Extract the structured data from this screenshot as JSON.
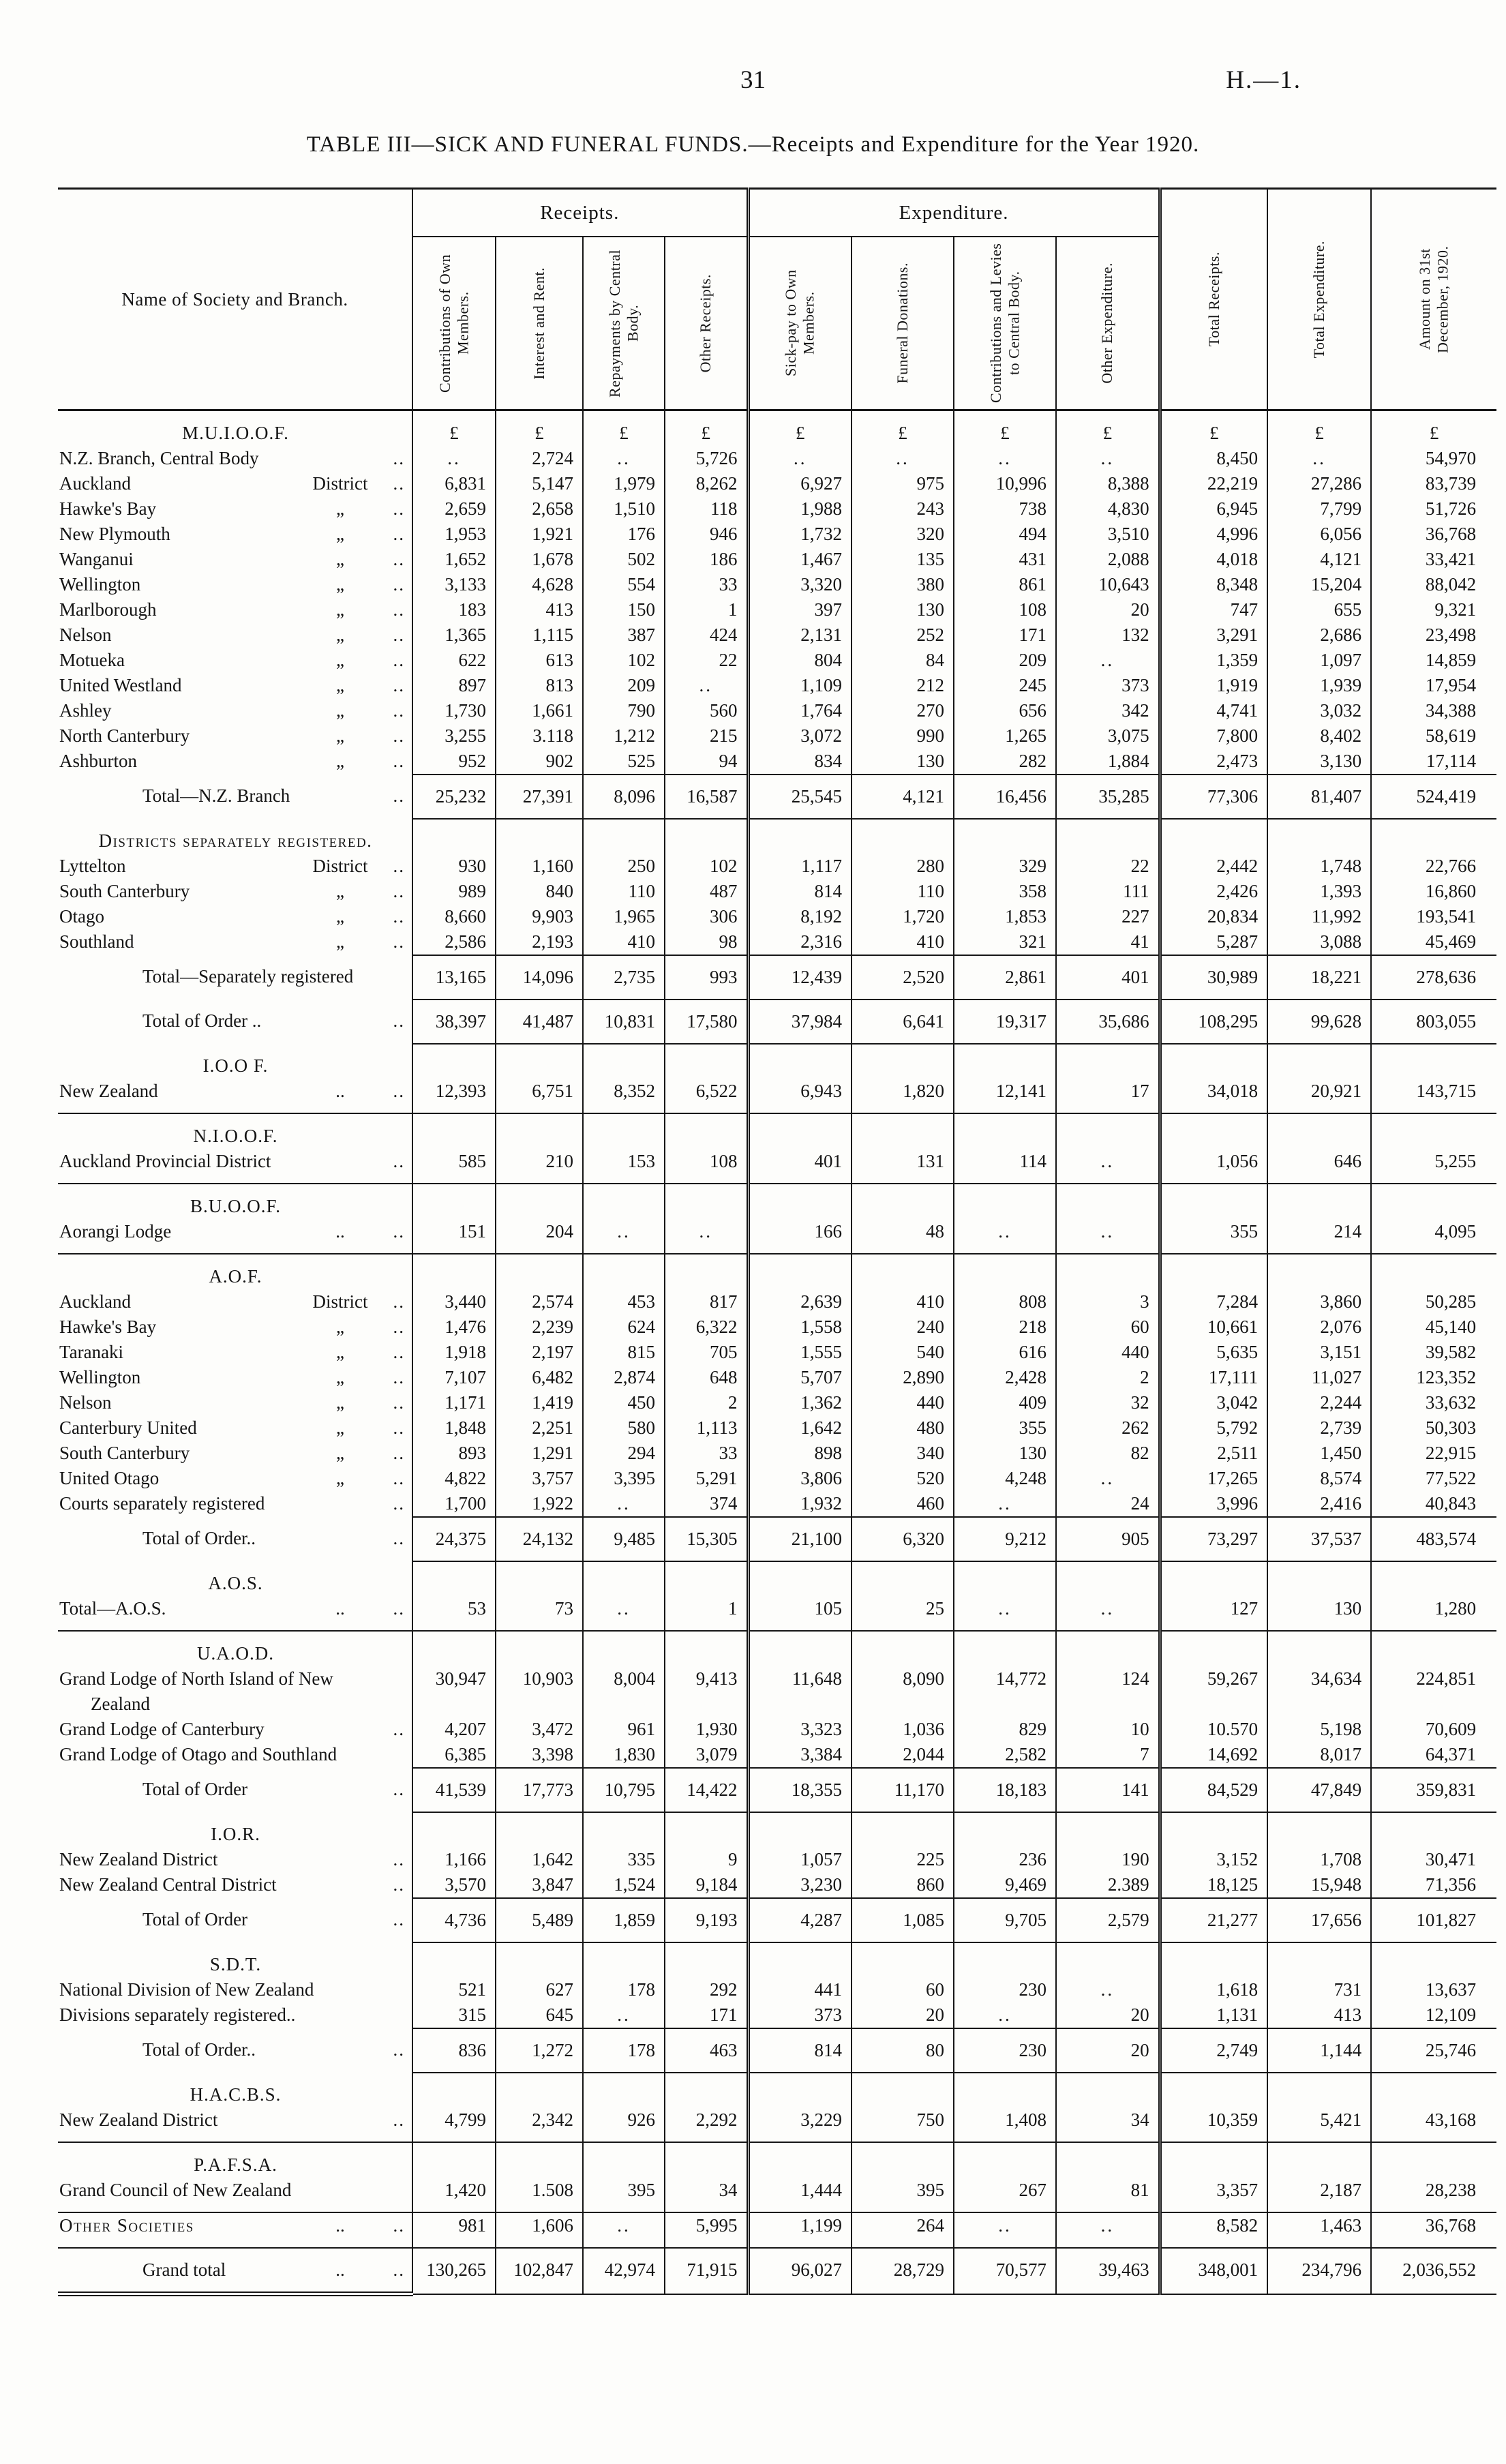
{
  "page": {
    "number": "31",
    "doc_ref": "H.—1."
  },
  "title": "TABLE III—SICK AND FUNERAL FUNDS.—Receipts and Expenditure for the Year 1920.",
  "table": {
    "name_header": "Name of Society and Branch.",
    "group_headers": {
      "receipts": "Receipts.",
      "expenditure": "Expenditure."
    },
    "currency_symbol": "£",
    "columns": [
      "Contributions of Own Members.",
      "Interest and Rent.",
      "Repayments by Central Body.",
      "Other Receipts.",
      "Sick-pay to Own Members.",
      "Funeral Donations.",
      "Contributions and Levies to Central Body.",
      "Other Expenditure.",
      "Total Receipts.",
      "Total Expenditure.",
      "Amount on 31st December, 1920."
    ],
    "rows": [
      {
        "type": "section",
        "label": "M.U.I.O.O.F.",
        "pounds": true
      },
      {
        "type": "data",
        "label": "N.Z. Branch, Central Body",
        "sub": "",
        "dots": "..",
        "values": [
          "..",
          "2,724",
          "..",
          "5,726",
          "..",
          "..",
          "..",
          "..",
          "8,450",
          "..",
          "54,970"
        ]
      },
      {
        "type": "data",
        "label": "Auckland",
        "sub": "District",
        "dots": "..",
        "values": [
          "6,831",
          "5,147",
          "1,979",
          "8,262",
          "6,927",
          "975",
          "10,996",
          "8,388",
          "22,219",
          "27,286",
          "83,739"
        ]
      },
      {
        "type": "data",
        "label": "Hawke's Bay",
        "sub": "„",
        "dots": "..",
        "values": [
          "2,659",
          "2,658",
          "1,510",
          "118",
          "1,988",
          "243",
          "738",
          "4,830",
          "6,945",
          "7,799",
          "51,726"
        ]
      },
      {
        "type": "data",
        "label": "New Plymouth",
        "sub": "„",
        "dots": "..",
        "values": [
          "1,953",
          "1,921",
          "176",
          "946",
          "1,732",
          "320",
          "494",
          "3,510",
          "4,996",
          "6,056",
          "36,768"
        ]
      },
      {
        "type": "data",
        "label": "Wanganui",
        "sub": "„",
        "dots": "..",
        "values": [
          "1,652",
          "1,678",
          "502",
          "186",
          "1,467",
          "135",
          "431",
          "2,088",
          "4,018",
          "4,121",
          "33,421"
        ]
      },
      {
        "type": "data",
        "label": "Wellington",
        "sub": "„",
        "dots": "..",
        "values": [
          "3,133",
          "4,628",
          "554",
          "33",
          "3,320",
          "380",
          "861",
          "10,643",
          "8,348",
          "15,204",
          "88,042"
        ]
      },
      {
        "type": "data",
        "label": "Marlborough",
        "sub": "„",
        "dots": "..",
        "values": [
          "183",
          "413",
          "150",
          "1",
          "397",
          "130",
          "108",
          "20",
          "747",
          "655",
          "9,321"
        ]
      },
      {
        "type": "data",
        "label": "Nelson",
        "sub": "„",
        "dots": "..",
        "values": [
          "1,365",
          "1,115",
          "387",
          "424",
          "2,131",
          "252",
          "171",
          "132",
          "3,291",
          "2,686",
          "23,498"
        ]
      },
      {
        "type": "data",
        "label": "Motueka",
        "sub": "„",
        "dots": "..",
        "values": [
          "622",
          "613",
          "102",
          "22",
          "804",
          "84",
          "209",
          "..",
          "1,359",
          "1,097",
          "14,859"
        ]
      },
      {
        "type": "data",
        "label": "United Westland",
        "sub": "„",
        "dots": "..",
        "values": [
          "897",
          "813",
          "209",
          "..",
          "1,109",
          "212",
          "245",
          "373",
          "1,919",
          "1,939",
          "17,954"
        ]
      },
      {
        "type": "data",
        "label": "Ashley",
        "sub": "„",
        "dots": "..",
        "values": [
          "1,730",
          "1,661",
          "790",
          "560",
          "1,764",
          "270",
          "656",
          "342",
          "4,741",
          "3,032",
          "34,388"
        ]
      },
      {
        "type": "data",
        "label": "North Canterbury",
        "sub": "„",
        "dots": "..",
        "values": [
          "3,255",
          "3.118",
          "1,212",
          "215",
          "3,072",
          "990",
          "1,265",
          "3,075",
          "7,800",
          "8,402",
          "58,619"
        ]
      },
      {
        "type": "data",
        "label": "Ashburton",
        "sub": "„",
        "dots": "..",
        "values": [
          "952",
          "902",
          "525",
          "94",
          "834",
          "130",
          "282",
          "1,884",
          "2,473",
          "3,130",
          "17,114"
        ]
      },
      {
        "type": "total",
        "label": "Total—N.Z. Branch",
        "sub": "",
        "dots": "..",
        "values": [
          "25,232",
          "27,391",
          "8,096",
          "16,587",
          "25,545",
          "4,121",
          "16,456",
          "35,285",
          "77,306",
          "81,407",
          "524,419"
        ]
      },
      {
        "type": "section",
        "label": "Districts separately registered.",
        "sc": true
      },
      {
        "type": "data",
        "label": "Lyttelton",
        "sub": "District",
        "dots": "..",
        "values": [
          "930",
          "1,160",
          "250",
          "102",
          "1,117",
          "280",
          "329",
          "22",
          "2,442",
          "1,748",
          "22,766"
        ]
      },
      {
        "type": "data",
        "label": "South Canterbury",
        "sub": "„",
        "dots": "..",
        "values": [
          "989",
          "840",
          "110",
          "487",
          "814",
          "110",
          "358",
          "111",
          "2,426",
          "1,393",
          "16,860"
        ]
      },
      {
        "type": "data",
        "label": "Otago",
        "sub": "„",
        "dots": "..",
        "values": [
          "8,660",
          "9,903",
          "1,965",
          "306",
          "8,192",
          "1,720",
          "1,853",
          "227",
          "20,834",
          "11,992",
          "193,541"
        ]
      },
      {
        "type": "data",
        "label": "Southland",
        "sub": "„",
        "dots": "..",
        "values": [
          "2,586",
          "2,193",
          "410",
          "98",
          "2,316",
          "410",
          "321",
          "41",
          "5,287",
          "3,088",
          "45,469"
        ]
      },
      {
        "type": "total",
        "label": "Total—Separately registered",
        "sub": "",
        "dots": "",
        "values": [
          "13,165",
          "14,096",
          "2,735",
          "993",
          "12,439",
          "2,520",
          "2,861",
          "401",
          "30,989",
          "18,221",
          "278,636"
        ]
      },
      {
        "type": "total",
        "label": "Total of Order ..",
        "sub": "",
        "dots": "..",
        "values": [
          "38,397",
          "41,487",
          "10,831",
          "17,580",
          "37,984",
          "6,641",
          "19,317",
          "35,686",
          "108,295",
          "99,628",
          "803,055"
        ]
      },
      {
        "type": "section",
        "label": "I.O.O F."
      },
      {
        "type": "data",
        "label": "New Zealand",
        "sub": "..",
        "dots": "..",
        "ruled": true,
        "values": [
          "12,393",
          "6,751",
          "8,352",
          "6,522",
          "6,943",
          "1,820",
          "12,141",
          "17",
          "34,018",
          "20,921",
          "143,715"
        ]
      },
      {
        "type": "section",
        "label": "N.I.O.O.F."
      },
      {
        "type": "data",
        "label": "Auckland Provincial District",
        "sub": "",
        "dots": "..",
        "ruled": true,
        "values": [
          "585",
          "210",
          "153",
          "108",
          "401",
          "131",
          "114",
          "..",
          "1,056",
          "646",
          "5,255"
        ]
      },
      {
        "type": "section",
        "label": "B.U.O.O.F."
      },
      {
        "type": "data",
        "label": "Aorangi Lodge",
        "sub": "..",
        "dots": "..",
        "ruled": true,
        "values": [
          "151",
          "204",
          "..",
          "..",
          "166",
          "48",
          "..",
          "..",
          "355",
          "214",
          "4,095"
        ]
      },
      {
        "type": "section",
        "label": "A.O.F."
      },
      {
        "type": "data",
        "label": "Auckland",
        "sub": "District",
        "dots": "..",
        "values": [
          "3,440",
          "2,574",
          "453",
          "817",
          "2,639",
          "410",
          "808",
          "3",
          "7,284",
          "3,860",
          "50,285"
        ]
      },
      {
        "type": "data",
        "label": "Hawke's Bay",
        "sub": "„",
        "dots": "..",
        "values": [
          "1,476",
          "2,239",
          "624",
          "6,322",
          "1,558",
          "240",
          "218",
          "60",
          "10,661",
          "2,076",
          "45,140"
        ]
      },
      {
        "type": "data",
        "label": "Taranaki",
        "sub": "„",
        "dots": "..",
        "values": [
          "1,918",
          "2,197",
          "815",
          "705",
          "1,555",
          "540",
          "616",
          "440",
          "5,635",
          "3,151",
          "39,582"
        ]
      },
      {
        "type": "data",
        "label": "Wellington",
        "sub": "„",
        "dots": "..",
        "values": [
          "7,107",
          "6,482",
          "2,874",
          "648",
          "5,707",
          "2,890",
          "2,428",
          "2",
          "17,111",
          "11,027",
          "123,352"
        ]
      },
      {
        "type": "data",
        "label": "Nelson",
        "sub": "„",
        "dots": "..",
        "values": [
          "1,171",
          "1,419",
          "450",
          "2",
          "1,362",
          "440",
          "409",
          "32",
          "3,042",
          "2,244",
          "33,632"
        ]
      },
      {
        "type": "data",
        "label": "Canterbury United",
        "sub": "„",
        "dots": "..",
        "values": [
          "1,848",
          "2,251",
          "580",
          "1,113",
          "1,642",
          "480",
          "355",
          "262",
          "5,792",
          "2,739",
          "50,303"
        ]
      },
      {
        "type": "data",
        "label": "South Canterbury",
        "sub": "„",
        "dots": "..",
        "values": [
          "893",
          "1,291",
          "294",
          "33",
          "898",
          "340",
          "130",
          "82",
          "2,511",
          "1,450",
          "22,915"
        ]
      },
      {
        "type": "data",
        "label": "United Otago",
        "sub": "„",
        "dots": "..",
        "values": [
          "4,822",
          "3,757",
          "3,395",
          "5,291",
          "3,806",
          "520",
          "4,248",
          "..",
          "17,265",
          "8,574",
          "77,522"
        ]
      },
      {
        "type": "data",
        "label": "Courts separately registered",
        "sub": "",
        "dots": "..",
        "values": [
          "1,700",
          "1,922",
          "..",
          "374",
          "1,932",
          "460",
          "..",
          "24",
          "3,996",
          "2,416",
          "40,843"
        ]
      },
      {
        "type": "total",
        "label": "Total of Order..",
        "sub": "",
        "dots": "..",
        "values": [
          "24,375",
          "24,132",
          "9,485",
          "15,305",
          "21,100",
          "6,320",
          "9,212",
          "905",
          "73,297",
          "37,537",
          "483,574"
        ]
      },
      {
        "type": "section",
        "label": "A.O.S."
      },
      {
        "type": "data",
        "label": "Total—A.O.S.",
        "sub": "..",
        "dots": "..",
        "ruled": true,
        "values": [
          "53",
          "73",
          "..",
          "1",
          "105",
          "25",
          "..",
          "..",
          "127",
          "130",
          "1,280"
        ]
      },
      {
        "type": "section",
        "label": "U.A.O.D."
      },
      {
        "type": "data",
        "label": "Grand Lodge of North Island of New Zealand",
        "sub": "",
        "dots": "",
        "values": [
          "30,947",
          "10,903",
          "8,004",
          "9,413",
          "11,648",
          "8,090",
          "14,772",
          "124",
          "59,267",
          "34,634",
          "224,851"
        ]
      },
      {
        "type": "data",
        "label": "Grand Lodge of Canterbury",
        "sub": "",
        "dots": "..",
        "values": [
          "4,207",
          "3,472",
          "961",
          "1,930",
          "3,323",
          "1,036",
          "829",
          "10",
          "10.570",
          "5,198",
          "70,609"
        ]
      },
      {
        "type": "data",
        "label": "Grand Lodge of Otago and Southland",
        "sub": "",
        "dots": "",
        "values": [
          "6,385",
          "3,398",
          "1,830",
          "3,079",
          "3,384",
          "2,044",
          "2,582",
          "7",
          "14,692",
          "8,017",
          "64,371"
        ]
      },
      {
        "type": "total",
        "label": "Total of Order",
        "sub": "",
        "dots": "..",
        "values": [
          "41,539",
          "17,773",
          "10,795",
          "14,422",
          "18,355",
          "11,170",
          "18,183",
          "141",
          "84,529",
          "47,849",
          "359,831"
        ]
      },
      {
        "type": "section",
        "label": "I.O.R."
      },
      {
        "type": "data",
        "label": "New Zealand District",
        "sub": "",
        "dots": "..",
        "values": [
          "1,166",
          "1,642",
          "335",
          "9",
          "1,057",
          "225",
          "236",
          "190",
          "3,152",
          "1,708",
          "30,471"
        ]
      },
      {
        "type": "data",
        "label": "New Zealand Central District",
        "sub": "",
        "dots": "..",
        "values": [
          "3,570",
          "3,847",
          "1,524",
          "9,184",
          "3,230",
          "860",
          "9,469",
          "2.389",
          "18,125",
          "15,948",
          "71,356"
        ]
      },
      {
        "type": "total",
        "label": "Total of Order",
        "sub": "",
        "dots": "..",
        "values": [
          "4,736",
          "5,489",
          "1,859",
          "9,193",
          "4,287",
          "1,085",
          "9,705",
          "2,579",
          "21,277",
          "17,656",
          "101,827"
        ]
      },
      {
        "type": "section",
        "label": "S.D.T."
      },
      {
        "type": "data",
        "label": "National Division of New Zealand",
        "sub": "",
        "dots": "",
        "values": [
          "521",
          "627",
          "178",
          "292",
          "441",
          "60",
          "230",
          "..",
          "1,618",
          "731",
          "13,637"
        ]
      },
      {
        "type": "data",
        "label": "Divisions separately registered..",
        "sub": "",
        "dots": "",
        "values": [
          "315",
          "645",
          "..",
          "171",
          "373",
          "20",
          "..",
          "20",
          "1,131",
          "413",
          "12,109"
        ]
      },
      {
        "type": "total",
        "label": "Total of Order..",
        "sub": "",
        "dots": "..",
        "values": [
          "836",
          "1,272",
          "178",
          "463",
          "814",
          "80",
          "230",
          "20",
          "2,749",
          "1,144",
          "25,746"
        ]
      },
      {
        "type": "section",
        "label": "H.A.C.B.S."
      },
      {
        "type": "data",
        "label": "New Zealand District",
        "sub": "",
        "dots": "..",
        "ruled": true,
        "values": [
          "4,799",
          "2,342",
          "926",
          "2,292",
          "3,229",
          "750",
          "1,408",
          "34",
          "10,359",
          "5,421",
          "43,168"
        ]
      },
      {
        "type": "section",
        "label": "P.A.F.S.A."
      },
      {
        "type": "data",
        "label": "Grand Council of New Zealand",
        "sub": "",
        "dots": "",
        "ruled": true,
        "values": [
          "1,420",
          "1.508",
          "395",
          "34",
          "1,444",
          "395",
          "267",
          "81",
          "3,357",
          "2,187",
          "28,238"
        ]
      },
      {
        "type": "data",
        "label": "Other Societies",
        "sc": true,
        "sub": "..",
        "dots": "..",
        "ruled": true,
        "values": [
          "981",
          "1,606",
          "..",
          "5,995",
          "1,199",
          "264",
          "..",
          "..",
          "8,582",
          "1,463",
          "36,768"
        ]
      },
      {
        "type": "grandtotal",
        "label": "Grand total",
        "sub": "..",
        "dots": "..",
        "values": [
          "130,265",
          "102,847",
          "42,974",
          "71,915",
          "96,027",
          "28,729",
          "70,577",
          "39,463",
          "348,001",
          "234,796",
          "2,036,552"
        ]
      }
    ]
  }
}
